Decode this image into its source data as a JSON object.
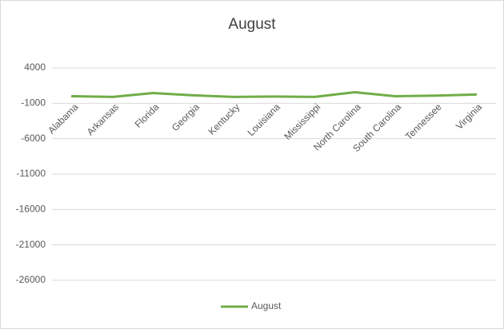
{
  "chart_data": {
    "type": "line",
    "title": "August",
    "categories": [
      "Alabama",
      "Arkansas",
      "Florida",
      "Georgia",
      "Kentucky",
      "Louisiana",
      "Mississippi",
      "North Carolina",
      "South Carolina",
      "Tennessee",
      "Virginia"
    ],
    "series": [
      {
        "name": "August",
        "color": "#70ad47",
        "values": [
          0,
          -100,
          450,
          120,
          -100,
          -50,
          -100,
          560,
          0,
          80,
          240
        ]
      }
    ],
    "ylim": [
      -26000,
      4000
    ],
    "yticks": [
      4000,
      -1000,
      -6000,
      -11000,
      -16000,
      -21000,
      -26000
    ],
    "grid": true,
    "legend": "bottom"
  }
}
